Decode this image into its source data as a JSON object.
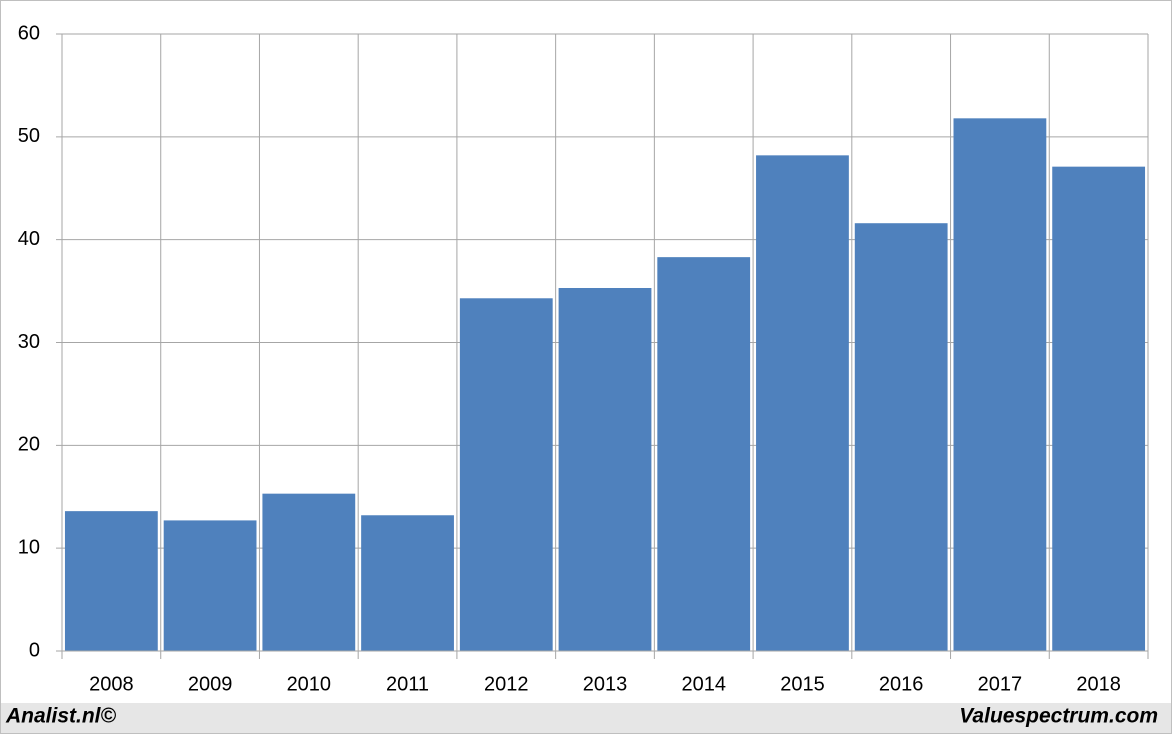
{
  "chart_data": {
    "type": "bar",
    "categories": [
      "2008",
      "2009",
      "2010",
      "2011",
      "2012",
      "2013",
      "2014",
      "2015",
      "2016",
      "2017",
      "2018"
    ],
    "values": [
      13.6,
      12.7,
      15.3,
      13.2,
      34.3,
      35.3,
      38.3,
      48.2,
      41.6,
      51.8,
      47.1
    ],
    "color": "#4f81bd",
    "ylim": [
      0,
      60
    ],
    "yticks": [
      0,
      10,
      20,
      30,
      40,
      50,
      60
    ],
    "grid": true,
    "footer_left": "Analist.nl©",
    "footer_right": "Valuespectrum.com"
  }
}
